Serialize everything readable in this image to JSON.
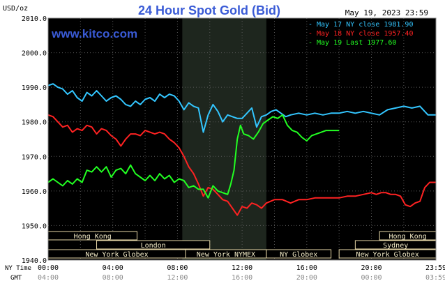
{
  "chart_data": {
    "type": "line",
    "title": "24 Hour Spot Gold (Bid)",
    "source_label": "www.kitco.com",
    "date_label": "May 19, 2023 23:59",
    "y_unit": "USD/oz",
    "ylim": [
      1940,
      2010
    ],
    "y_ticks": [
      "2010.0",
      "2000.0",
      "1990.0",
      "1980.0",
      "1970.0",
      "1960.0",
      "1950.0",
      "1940.0"
    ],
    "x_row1_label": "NY Time",
    "x_row2_label": "GMT",
    "x_ticks_ny": [
      "00:00",
      "04:00",
      "08:00",
      "12:00",
      "16:00",
      "20:00",
      "23:59"
    ],
    "x_ticks_gmt": [
      "04:00",
      "08:00",
      "12:00",
      "16:00",
      "20:00",
      "00:00",
      "03:59"
    ],
    "grid": true,
    "legend_position": "top-right",
    "legend": [
      {
        "text": "May 17 NY close 1981.90",
        "color": "#33c6ff"
      },
      {
        "text": "May 18 NY close 1957.40",
        "color": "#ff2222"
      },
      {
        "text": "May 19 Last 1977.60",
        "color": "#22ff22"
      }
    ],
    "sessions": [
      {
        "label": "Hong Kong",
        "start": 0,
        "end": 5.5,
        "row": 0
      },
      {
        "label": "Hong Kong",
        "start": 20.5,
        "end": 23.99,
        "row": 0
      },
      {
        "label": "London",
        "start": 3,
        "end": 10,
        "row": 1
      },
      {
        "label": "Sydney",
        "start": 19,
        "end": 23.99,
        "row": 1
      },
      {
        "label": "New York Globex",
        "start": 0,
        "end": 8.5,
        "row": 2
      },
      {
        "label": "New York NYMEX",
        "start": 8.5,
        "end": 13.5,
        "row": 2
      },
      {
        "label": "NY Globex",
        "start": 13.5,
        "end": 17.5,
        "row": 2
      },
      {
        "label": "New York Globex",
        "start": 18,
        "end": 23.99,
        "row": 2
      }
    ],
    "nymex_shade": {
      "start": 8.3,
      "end": 13.5,
      "color": "#1e261e"
    },
    "series": [
      {
        "name": "May 17 NY close 1981.90",
        "color": "#33c6ff",
        "x": [
          0,
          0.3,
          0.6,
          0.9,
          1.2,
          1.5,
          1.8,
          2.1,
          2.4,
          2.7,
          3.0,
          3.3,
          3.6,
          3.9,
          4.2,
          4.5,
          4.8,
          5.1,
          5.4,
          5.7,
          6.0,
          6.3,
          6.6,
          6.9,
          7.2,
          7.5,
          7.8,
          8.1,
          8.4,
          8.7,
          9.0,
          9.3,
          9.6,
          9.9,
          10.2,
          10.5,
          10.8,
          11.1,
          11.4,
          11.7,
          12.0,
          12.3,
          12.6,
          12.9,
          13.2,
          13.5,
          13.8,
          14.1,
          14.4,
          14.7,
          15.0,
          15.5,
          16.0,
          16.5,
          17.0,
          17.5,
          18.0,
          18.5,
          19.0,
          19.5,
          20.0,
          20.5,
          21.0,
          21.5,
          22.0,
          22.5,
          23.0,
          23.5,
          23.99
        ],
        "y": [
          1990.5,
          1991.0,
          1990.0,
          1989.5,
          1988.0,
          1989.0,
          1987.0,
          1986.0,
          1988.5,
          1987.5,
          1989.0,
          1987.5,
          1986.0,
          1987.0,
          1987.5,
          1986.5,
          1985.0,
          1984.5,
          1986.0,
          1985.0,
          1986.5,
          1987.0,
          1986.0,
          1988.0,
          1987.0,
          1988.0,
          1987.5,
          1986.0,
          1983.5,
          1985.5,
          1984.5,
          1984.0,
          1977.0,
          1982.0,
          1985.0,
          1983.0,
          1980.0,
          1982.0,
          1981.5,
          1981.0,
          1981.0,
          1982.5,
          1984.0,
          1978.5,
          1981.5,
          1982.0,
          1983.0,
          1983.5,
          1982.5,
          1981.5,
          1982.0,
          1982.5,
          1982.0,
          1982.5,
          1982.0,
          1982.5,
          1982.5,
          1983.0,
          1982.5,
          1983.0,
          1982.5,
          1982.0,
          1983.5,
          1984.0,
          1984.5,
          1984.0,
          1984.5,
          1982.0,
          1982.0
        ]
      },
      {
        "name": "May 18 NY close 1957.40",
        "color": "#ff2222",
        "x": [
          0,
          0.3,
          0.6,
          0.9,
          1.2,
          1.5,
          1.8,
          2.1,
          2.4,
          2.7,
          3.0,
          3.3,
          3.6,
          3.9,
          4.2,
          4.5,
          4.8,
          5.1,
          5.4,
          5.7,
          6.0,
          6.3,
          6.6,
          6.9,
          7.2,
          7.5,
          7.8,
          8.1,
          8.4,
          8.7,
          9.0,
          9.3,
          9.6,
          9.9,
          10.2,
          10.5,
          10.8,
          11.1,
          11.4,
          11.7,
          12.0,
          12.3,
          12.6,
          12.9,
          13.2,
          13.5,
          14.0,
          14.5,
          15.0,
          15.5,
          16.0,
          16.5,
          17.0,
          17.5,
          18.0,
          18.5,
          19.0,
          19.5,
          20.0,
          20.3,
          20.6,
          20.9,
          21.2,
          21.5,
          21.8,
          22.1,
          22.4,
          22.7,
          23.0,
          23.3,
          23.6,
          23.99
        ],
        "y": [
          1982.0,
          1981.5,
          1980.0,
          1978.5,
          1979.0,
          1977.0,
          1978.0,
          1977.5,
          1979.0,
          1978.5,
          1976.5,
          1978.0,
          1977.5,
          1976.0,
          1975.0,
          1973.0,
          1975.0,
          1976.5,
          1976.5,
          1976.0,
          1977.5,
          1977.0,
          1976.5,
          1977.0,
          1976.5,
          1975.0,
          1974.0,
          1972.5,
          1970.0,
          1967.0,
          1965.0,
          1962.0,
          1958.5,
          1961.0,
          1960.5,
          1959.0,
          1957.5,
          1957.0,
          1955.0,
          1953.0,
          1955.5,
          1955.0,
          1956.5,
          1956.0,
          1955.0,
          1956.5,
          1957.5,
          1957.5,
          1956.5,
          1957.5,
          1957.5,
          1958.0,
          1958.0,
          1958.0,
          1958.0,
          1958.5,
          1958.5,
          1959.0,
          1959.5,
          1959.0,
          1959.5,
          1959.5,
          1959.0,
          1959.0,
          1958.5,
          1956.0,
          1955.5,
          1956.5,
          1957.0,
          1961.0,
          1962.5,
          1962.5
        ]
      },
      {
        "name": "May 19 Last 1977.60",
        "color": "#22ff22",
        "x": [
          0,
          0.3,
          0.6,
          0.9,
          1.2,
          1.5,
          1.8,
          2.1,
          2.4,
          2.7,
          3.0,
          3.3,
          3.6,
          3.9,
          4.2,
          4.5,
          4.8,
          5.1,
          5.4,
          5.7,
          6.0,
          6.3,
          6.6,
          6.9,
          7.2,
          7.5,
          7.8,
          8.1,
          8.4,
          8.7,
          9.0,
          9.3,
          9.6,
          9.9,
          10.2,
          10.5,
          10.8,
          11.1,
          11.3,
          11.5,
          11.7,
          11.9,
          12.1,
          12.4,
          12.7,
          13.0,
          13.3,
          13.6,
          13.9,
          14.2,
          14.5,
          14.8,
          15.1,
          15.4,
          15.7,
          16.0,
          16.3,
          16.6,
          16.9,
          17.2,
          17.5,
          17.8,
          18.0
        ],
        "y": [
          1962.5,
          1963.5,
          1962.5,
          1961.5,
          1963.0,
          1962.0,
          1963.5,
          1962.5,
          1966.0,
          1965.5,
          1967.0,
          1965.5,
          1967.0,
          1964.0,
          1966.0,
          1966.5,
          1965.0,
          1967.5,
          1965.0,
          1964.0,
          1963.0,
          1964.5,
          1963.0,
          1965.0,
          1963.5,
          1964.5,
          1962.5,
          1963.5,
          1963.0,
          1961.0,
          1961.5,
          1960.5,
          1960.5,
          1958.0,
          1961.5,
          1960.0,
          1959.5,
          1959.0,
          1962.0,
          1966.0,
          1975.0,
          1979.0,
          1976.5,
          1976.0,
          1975.0,
          1977.0,
          1979.5,
          1980.5,
          1981.5,
          1981.0,
          1982.0,
          1979.0,
          1977.5,
          1977.0,
          1975.5,
          1974.5,
          1976.0,
          1976.5,
          1977.0,
          1977.5,
          1977.5,
          1977.5,
          1977.5
        ]
      }
    ]
  }
}
